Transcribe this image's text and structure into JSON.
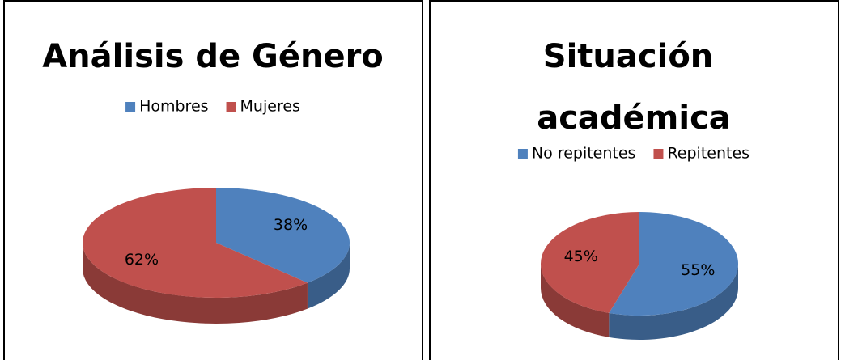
{
  "chart_data": [
    {
      "type": "pie",
      "title": "Análisis de Género",
      "categories": [
        "Hombres",
        "Mujeres"
      ],
      "values": [
        38,
        62
      ],
      "value_labels": [
        "38%",
        "62%"
      ],
      "colors": [
        "#4f81bd",
        "#c0504d"
      ],
      "legend": "top"
    },
    {
      "type": "pie",
      "title": "Situación académica",
      "categories": [
        "No repitentes",
        "Repitentes"
      ],
      "values": [
        55,
        45
      ],
      "value_labels": [
        "55%",
        "45%"
      ],
      "colors": [
        "#4f81bd",
        "#c0504d"
      ],
      "legend": "top"
    }
  ]
}
